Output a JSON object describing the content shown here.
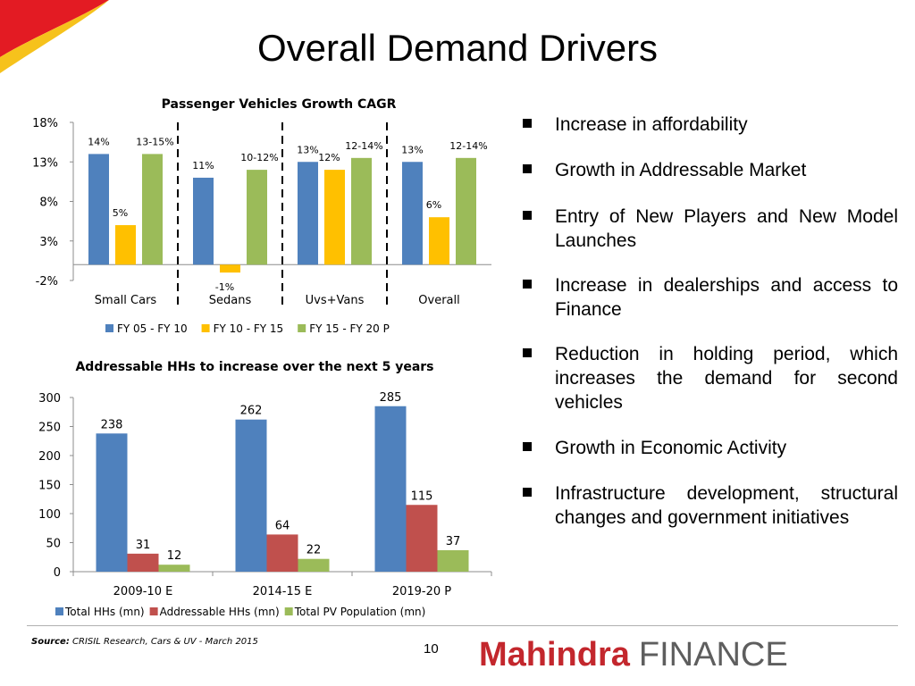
{
  "slide": {
    "title": "Overall Demand Drivers",
    "page_number": "10",
    "source_label": "Source:",
    "source_text": "CRISIL Research, Cars & UV - March 2015",
    "logo_primary": "Mahindra",
    "logo_secondary": "FINANCE",
    "accent_colors": {
      "logo_red": "#c3272d",
      "swoosh_red": "#e31b23",
      "swoosh_yellow": "#f6c21c"
    }
  },
  "bullets": [
    "Increase in affordability",
    "Growth in Addressable Market",
    "Entry of New Players and New Model Launches",
    "Increase in dealerships and access to Finance",
    "Reduction in holding period, which increases the demand for second vehicles",
    "Growth in Economic Activity",
    "Infrastructure development, structural changes and government initiatives"
  ],
  "chart_data": [
    {
      "type": "bar",
      "title": "Passenger Vehicles Growth CAGR",
      "categories": [
        "Small Cars",
        "Sedans",
        "Uvs+Vans",
        "Overall"
      ],
      "series": [
        {
          "name": "FY 05 - FY 10",
          "color": "#4f81bd",
          "values": [
            14,
            11,
            13,
            13
          ],
          "labels": [
            "14%",
            "11%",
            "13%",
            "13%"
          ]
        },
        {
          "name": "FY 10 - FY 15",
          "color": "#ffc000",
          "values": [
            5,
            -1,
            12,
            6
          ],
          "labels": [
            "5%",
            "-1%",
            "12%",
            "6%"
          ]
        },
        {
          "name": "FY 15 - FY 20 P",
          "color": "#9bbb59",
          "values": [
            14,
            12,
            13.5,
            13.5
          ],
          "labels": [
            "13-15%",
            "10-12%",
            "12-14%",
            "12-14%"
          ]
        }
      ],
      "ylim": [
        -2,
        18
      ],
      "yticks": [
        -2,
        3,
        8,
        13,
        18
      ],
      "ytick_labels": [
        "-2%",
        "3%",
        "8%",
        "13%",
        "18%"
      ],
      "legend_position": "bottom",
      "category_separators": "dashed"
    },
    {
      "type": "bar",
      "title": "Addressable HHs to increase over the next 5 years",
      "categories": [
        "2009-10 E",
        "2014-15 E",
        "2019-20 P"
      ],
      "series": [
        {
          "name": "Total HHs (mn)",
          "color": "#4f81bd",
          "values": [
            238,
            262,
            285
          ]
        },
        {
          "name": "Addressable HHs (mn)",
          "color": "#c0504d",
          "values": [
            31,
            64,
            115
          ]
        },
        {
          "name": "Total PV Population (mn)",
          "color": "#9bbb59",
          "values": [
            12,
            22,
            37
          ]
        }
      ],
      "ylim": [
        0,
        300
      ],
      "yticks": [
        0,
        50,
        100,
        150,
        200,
        250,
        300
      ],
      "legend_position": "bottom"
    }
  ]
}
